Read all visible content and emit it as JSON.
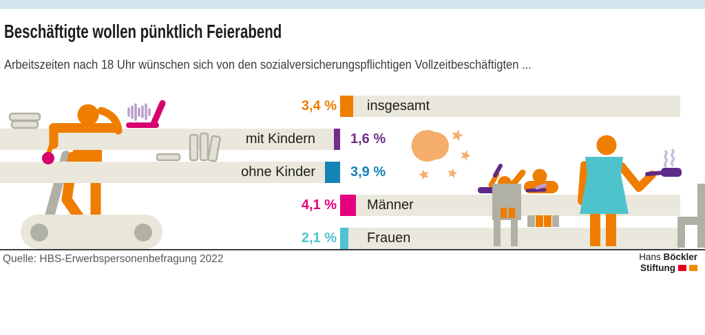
{
  "header": {
    "top_bar_color": "#d2e5ef",
    "title": "Beschäftigte wollen pünktlich Feierabend",
    "subtitle": "Arbeitszeiten nach 18 Uhr wünschen sich von den sozialversicherungspflichtigen Vollzeitbeschäftigten ..."
  },
  "chart_data": {
    "type": "bar",
    "orientation": "horizontal",
    "unit": "%",
    "categories": [
      "insgesamt",
      "mit Kindern",
      "ohne Kinder",
      "Männer",
      "Frauen"
    ],
    "values": [
      3.4,
      1.6,
      3.9,
      4.1,
      2.1
    ],
    "value_labels": [
      "3,4 %",
      "1,6 %",
      "3,9 %",
      "4,1 %",
      "2,1 %"
    ],
    "bar_colors": [
      "#ef7d00",
      "#712d87",
      "#1583b5",
      "#e5007d",
      "#4fc3d1"
    ],
    "label_side": [
      "right",
      "left",
      "left",
      "right",
      "right"
    ],
    "bar_background": "#eae8dc",
    "legend": "none",
    "grid": false
  },
  "illustrations": {
    "left": "tired-worker-on-treadmill-desk-with-laptop-books-and-mouse",
    "middle": "crescent-moon-and-stars",
    "right": "children-at-table-and-parent-cooking-with-pan-beside-chair",
    "palette": {
      "figure_orange": "#ef7d00",
      "soft_orange": "#f5ad6e",
      "gray": "#b1b0a4",
      "beige": "#e9e7da",
      "magenta": "#d6006e",
      "dark_purple": "#5f2a87",
      "light_purple": "#b9a1cf",
      "teal": "#4fc3cb"
    }
  },
  "footer": {
    "source": "Quelle: HBS-Erwerbspersonenbefragung 2022",
    "divider_color": "#3c3c3b",
    "logo": {
      "name_regular": "Hans",
      "name_bold": "Böckler",
      "line2": "Stiftung",
      "block_colors": [
        "#e2001a",
        "#f18a00"
      ]
    }
  }
}
